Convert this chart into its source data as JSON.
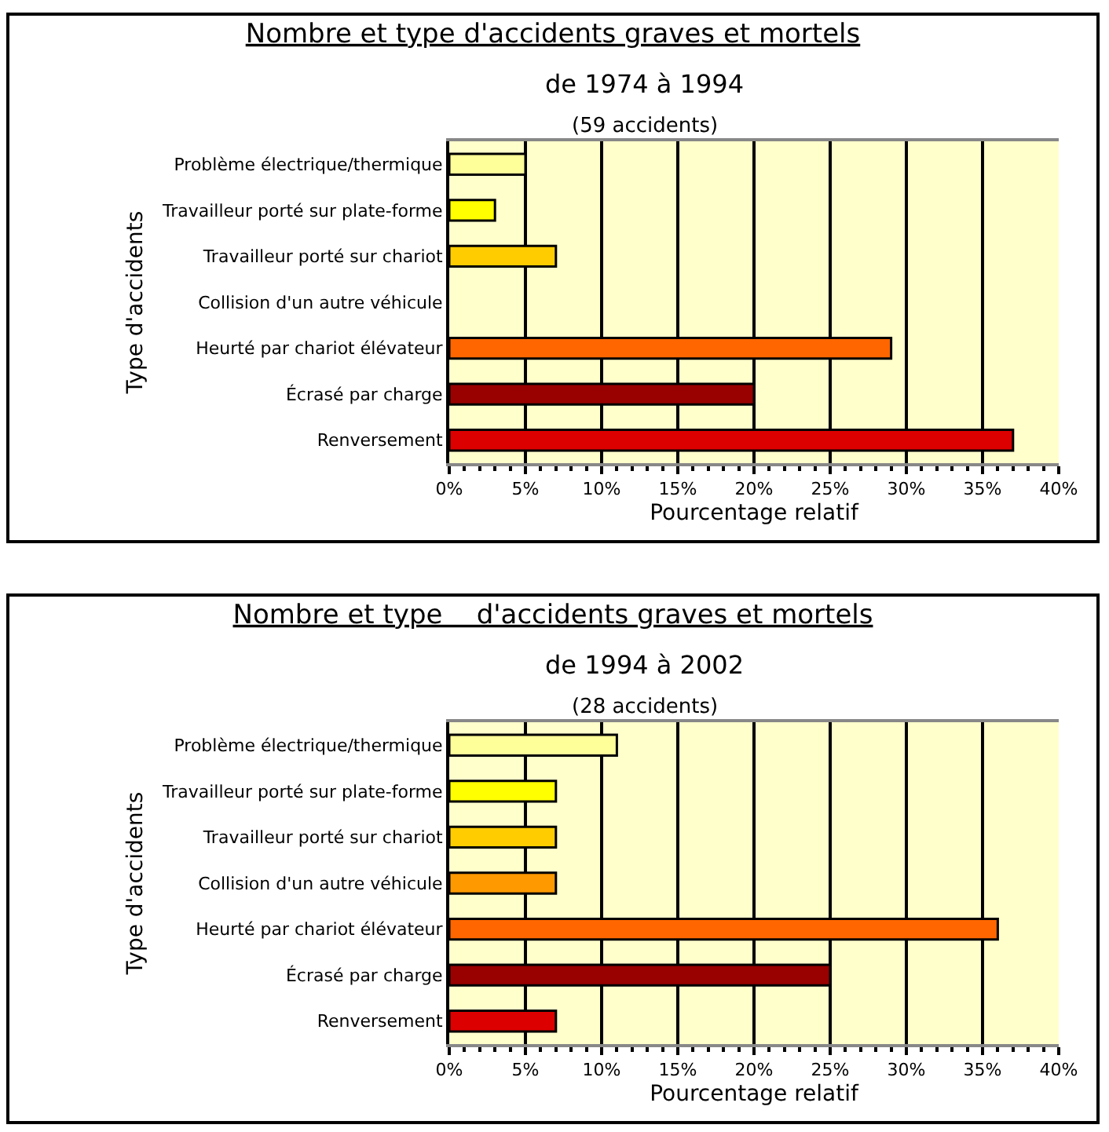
{
  "chart_data": [
    {
      "type": "bar",
      "orientation": "horizontal",
      "title": "Nombre et type d'accidents graves et mortels",
      "subtitle": "de 1974 à 1994",
      "annotations": [
        "(59 accidents)"
      ],
      "xlabel": "Pourcentage relatif",
      "ylabel": "Type d'accidents",
      "categories": [
        "Problème électrique/thermique",
        "Travailleur porté sur plate-forme",
        "Travailleur porté sur chariot",
        "Collision d'un autre véhicule",
        "Heurté par chariot élévateur",
        "Écrasé par charge",
        "Renversement"
      ],
      "values": [
        5,
        3,
        7,
        0,
        29,
        20,
        37
      ],
      "colors": [
        "#ffff99",
        "#ffff00",
        "#ffcc00",
        null,
        "#ff6600",
        "#990000",
        "#dd0000"
      ],
      "xlim": [
        0,
        40
      ],
      "xticks": [
        {
          "value": 0,
          "label": "0%"
        },
        {
          "value": 5,
          "label": "5%"
        },
        {
          "value": 10,
          "label": "10%"
        },
        {
          "value": 15,
          "label": "15%"
        },
        {
          "value": 20,
          "label": "20%"
        },
        {
          "value": 25,
          "label": "25%"
        },
        {
          "value": 30,
          "label": "30%"
        },
        {
          "value": 35,
          "label": "35%"
        },
        {
          "value": 40,
          "label": "40%"
        }
      ],
      "grid": "x"
    },
    {
      "type": "bar",
      "orientation": "horizontal",
      "title": "Nombre et type    d'accidents graves et mortels",
      "subtitle": "de 1994 à 2002",
      "annotations": [
        "(28 accidents)"
      ],
      "xlabel": "Pourcentage relatif",
      "ylabel": "Type d'accidents",
      "categories": [
        "Problème électrique/thermique",
        "Travailleur porté sur plate-forme",
        "Travailleur porté sur chariot",
        "Collision d'un autre véhicule",
        "Heurté par chariot élévateur",
        "Écrasé par charge",
        "Renversement"
      ],
      "values": [
        11,
        7,
        7,
        7,
        36,
        25,
        7
      ],
      "colors": [
        "#ffff99",
        "#ffff00",
        "#ffcc00",
        "#ff9900",
        "#ff6600",
        "#990000",
        "#dd0000"
      ],
      "xlim": [
        0,
        40
      ],
      "xticks": [
        {
          "value": 0,
          "label": "0%"
        },
        {
          "value": 5,
          "label": "5%"
        },
        {
          "value": 10,
          "label": "10%"
        },
        {
          "value": 15,
          "label": "15%"
        },
        {
          "value": 20,
          "label": "20%"
        },
        {
          "value": 25,
          "label": "25%"
        },
        {
          "value": 30,
          "label": "30%"
        },
        {
          "value": 35,
          "label": "35%"
        },
        {
          "value": 40,
          "label": "40%"
        }
      ],
      "grid": "x"
    }
  ]
}
